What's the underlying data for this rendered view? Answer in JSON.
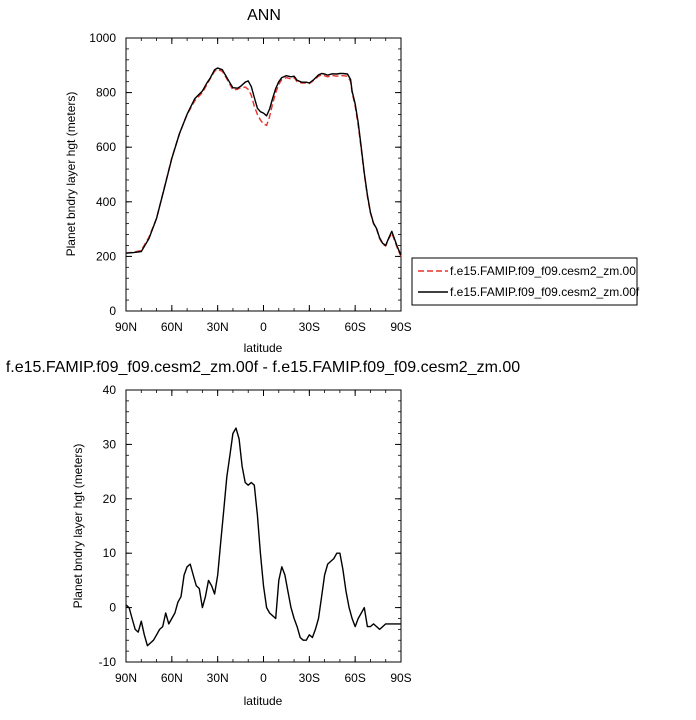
{
  "chart_data": [
    {
      "type": "line",
      "title": "ANN",
      "xlabel": "latitude",
      "ylabel": "Planet bndry layer hgt (meters)",
      "x_tick_labels": [
        "90N",
        "60N",
        "30N",
        "0",
        "30S",
        "60S",
        "90S"
      ],
      "x_tick_values": [
        90,
        60,
        30,
        0,
        -30,
        -60,
        -90
      ],
      "xlim": [
        90,
        -90
      ],
      "ylim": [
        0,
        1000
      ],
      "y_ticks": [
        0,
        200,
        400,
        600,
        800,
        1000
      ],
      "legend_position": "right",
      "series": [
        {
          "name": "f.e15.FAMIP.f09_f09.cesm2_zm.00",
          "color": "#e8302a",
          "dash": "dashed",
          "x": [
            90,
            85,
            80,
            75,
            70,
            65,
            60,
            55,
            50,
            45,
            40,
            37,
            35,
            32,
            30,
            27,
            25,
            22,
            20,
            17,
            15,
            12,
            10,
            8,
            6,
            4,
            2,
            0,
            -2,
            -4,
            -6,
            -8,
            -10,
            -12,
            -15,
            -18,
            -20,
            -22,
            -25,
            -28,
            -30,
            -33,
            -36,
            -38,
            -40,
            -42,
            -45,
            -48,
            -50,
            -52,
            -55,
            -57,
            -58,
            -60,
            -62,
            -64,
            -66,
            -68,
            -70,
            -72,
            -74,
            -76,
            -78,
            -80,
            -82,
            -84,
            -86,
            -88,
            -90
          ],
          "values": [
            212,
            215,
            222,
            270,
            340,
            450,
            560,
            650,
            720,
            770,
            800,
            830,
            850,
            878,
            885,
            878,
            860,
            830,
            810,
            812,
            818,
            820,
            812,
            790,
            750,
            720,
            700,
            685,
            680,
            712,
            760,
            800,
            830,
            848,
            855,
            850,
            855,
            840,
            835,
            835,
            833,
            845,
            860,
            865,
            862,
            858,
            863,
            860,
            862,
            862,
            860,
            840,
            800,
            750,
            680,
            590,
            500,
            420,
            360,
            320,
            300,
            265,
            245,
            238,
            265,
            285,
            255,
            225,
            200
          ]
        },
        {
          "name": "f.e15.FAMIP.f09_f09.cesm2_zm.00f",
          "color": "#000000",
          "dash": "solid",
          "x": [
            90,
            85,
            80,
            75,
            70,
            65,
            60,
            55,
            50,
            45,
            40,
            37,
            35,
            32,
            30,
            27,
            25,
            22,
            20,
            17,
            15,
            12,
            10,
            8,
            6,
            4,
            2,
            0,
            -2,
            -4,
            -6,
            -8,
            -10,
            -12,
            -15,
            -18,
            -20,
            -22,
            -25,
            -28,
            -30,
            -33,
            -36,
            -38,
            -40,
            -42,
            -45,
            -48,
            -50,
            -52,
            -55,
            -57,
            -58,
            -60,
            -62,
            -64,
            -66,
            -68,
            -70,
            -72,
            -74,
            -76,
            -78,
            -80,
            -82,
            -84,
            -86,
            -88,
            -90
          ],
          "values": [
            212,
            214,
            218,
            265,
            340,
            448,
            559,
            650,
            721,
            778,
            806,
            836,
            852,
            884,
            890,
            884,
            865,
            836,
            818,
            816,
            823,
            838,
            843,
            822,
            782,
            743,
            730,
            725,
            715,
            740,
            780,
            815,
            840,
            855,
            862,
            858,
            860,
            845,
            838,
            838,
            835,
            848,
            865,
            870,
            868,
            864,
            869,
            868,
            870,
            870,
            868,
            848,
            805,
            758,
            690,
            598,
            505,
            425,
            362,
            322,
            302,
            268,
            248,
            240,
            268,
            292,
            260,
            230,
            204
          ]
        }
      ]
    },
    {
      "type": "line",
      "title": "f.e15.FAMIP.f09_f09.cesm2_zm.00f - f.e15.FAMIP.f09_f09.cesm2_zm.00",
      "xlabel": "latitude",
      "ylabel": "Planet bndry layer hgt (meters)",
      "x_tick_labels": [
        "90N",
        "60N",
        "30N",
        "0",
        "30S",
        "60S",
        "90S"
      ],
      "x_tick_values": [
        90,
        60,
        30,
        0,
        -30,
        -60,
        -90
      ],
      "xlim": [
        90,
        -90
      ],
      "ylim": [
        -10,
        40
      ],
      "y_ticks": [
        -10,
        0,
        10,
        20,
        30,
        40
      ],
      "series": [
        {
          "color": "#000000",
          "dash": "solid",
          "x": [
            90,
            88,
            86,
            84,
            82,
            80,
            78,
            76,
            74,
            72,
            70,
            68,
            66,
            64,
            62,
            60,
            58,
            56,
            54,
            52,
            50,
            48,
            46,
            44,
            42,
            40,
            38,
            36,
            34,
            32,
            30,
            28,
            26,
            24,
            22,
            20,
            18,
            16,
            14,
            12,
            10,
            8,
            6,
            4,
            2,
            0,
            -2,
            -4,
            -6,
            -8,
            -10,
            -12,
            -14,
            -16,
            -18,
            -20,
            -22,
            -24,
            -26,
            -28,
            -30,
            -32,
            -34,
            -36,
            -38,
            -40,
            -42,
            -44,
            -46,
            -48,
            -50,
            -52,
            -54,
            -56,
            -58,
            -60,
            -62,
            -64,
            -66,
            -68,
            -70,
            -72,
            -74,
            -76,
            -78,
            -80,
            -82,
            -84,
            -86,
            -88,
            -90
          ],
          "values": [
            0.5,
            0,
            -2,
            -4,
            -4.5,
            -2.5,
            -5,
            -7,
            -6.5,
            -6,
            -5,
            -4,
            -3.5,
            -1,
            -3,
            -2,
            -1,
            1,
            2,
            6,
            7.5,
            8,
            6,
            4,
            3.5,
            0,
            2,
            5,
            4,
            2.5,
            6,
            12,
            18,
            24,
            28,
            32,
            33,
            31,
            26,
            23,
            22.5,
            23,
            22.5,
            17,
            10,
            4,
            0,
            -1,
            -1.5,
            -2,
            5,
            7.5,
            6,
            3,
            0,
            -2,
            -3.5,
            -5.5,
            -6,
            -6,
            -5,
            -5.5,
            -4,
            -2,
            2,
            6,
            8,
            8.5,
            9,
            10,
            10,
            7,
            3,
            0,
            -2,
            -3.5,
            -2,
            -1,
            0,
            -3.5,
            -3.5,
            -3,
            -3.5,
            -4,
            -3.5,
            -3,
            -3,
            -3,
            -3,
            -3,
            -3
          ]
        }
      ]
    }
  ]
}
